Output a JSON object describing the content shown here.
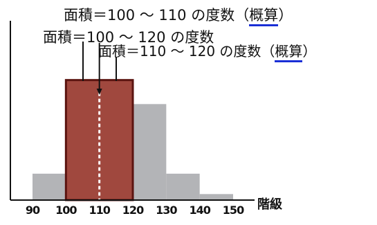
{
  "chart_data": {
    "type": "bar",
    "categories": [
      "90-100",
      "100-110",
      "110-120",
      "120-130",
      "130-140",
      "140-150"
    ],
    "bins": [
      {
        "from": 90,
        "to": 100,
        "value": 22
      },
      {
        "from": 100,
        "to": 120,
        "value": 100
      },
      {
        "from": 120,
        "to": 130,
        "value": 80
      },
      {
        "from": 130,
        "to": 140,
        "value": 22
      },
      {
        "from": 140,
        "to": 150,
        "value": 5
      }
    ],
    "highlight": {
      "from": 100,
      "to": 120,
      "color": "#a0483e",
      "stroke": "#5b1410"
    },
    "base_color": "#b3b4b7",
    "accent_color": "#1a2fd6",
    "x_ticks": [
      "90",
      "100",
      "110",
      "120",
      "130",
      "140",
      "150"
    ],
    "xlim": [
      90,
      150
    ],
    "ylim": [
      0,
      105
    ],
    "xlabel": "階級",
    "annotations": [
      {
        "part1": "面積＝100 ～ 110 の度数（",
        "underlined": "概算",
        "part2": "）"
      },
      {
        "part1": "面積＝100 ～ 120 の度数",
        "underlined": "",
        "part2": ""
      },
      {
        "part1": "面積＝110 ～ 120 の度数（",
        "underlined": "概算",
        "part2": "）"
      }
    ],
    "grid": false
  }
}
